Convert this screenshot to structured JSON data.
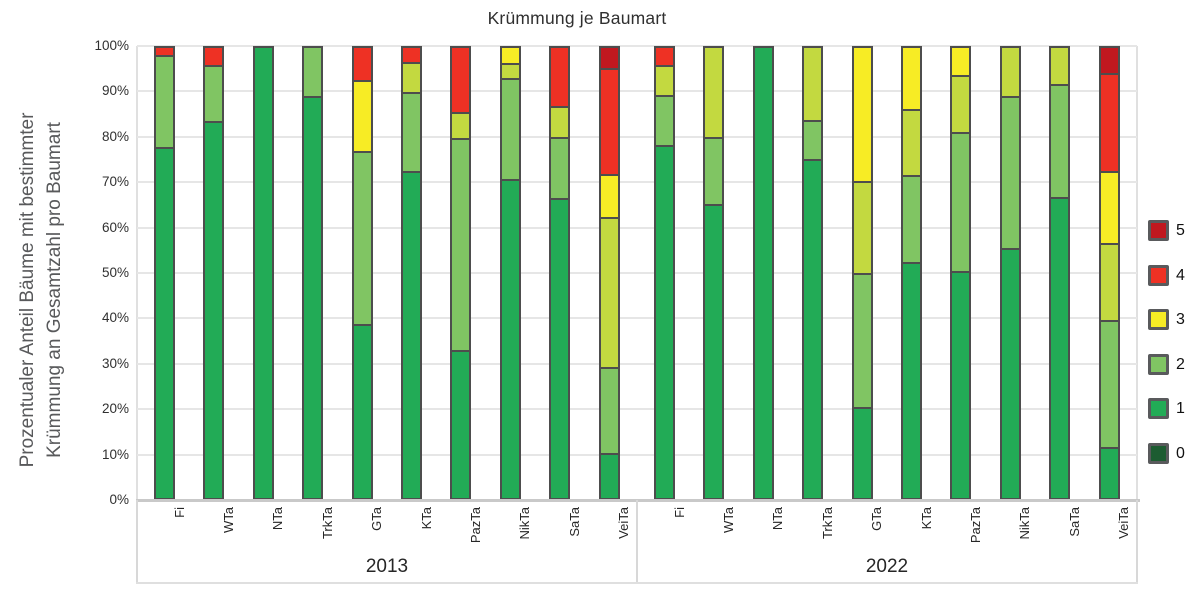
{
  "title": "Krümmung je Baumart",
  "y_axis": {
    "label_line1": "Prozentualer Anteil Bäume mit bestimmter",
    "label_line2": "Krümmung an Gesamtzahl pro Baumart",
    "ticks": [
      "100%",
      "90%",
      "80%",
      "70%",
      "60%",
      "50%",
      "40%",
      "30%",
      "20%",
      "10%",
      "0%"
    ]
  },
  "legend": {
    "items": [
      {
        "label": "5",
        "color": "#c0181f"
      },
      {
        "label": "4",
        "color": "#ee3124"
      },
      {
        "label": "3",
        "color": "#f7ec25"
      },
      {
        "label": "2",
        "color": "#80c563"
      },
      {
        "label": "1",
        "color": "#22ab56"
      },
      {
        "label": "0",
        "color": "#1d5c31"
      }
    ]
  },
  "chart_data": {
    "type": "stacked-bar",
    "unit": "percent-of-total-per-species",
    "title": "Krümmung je Baumart",
    "ylim": [
      0,
      100
    ],
    "grid": true,
    "legend_position": "right",
    "groups": [
      "2013",
      "2022"
    ],
    "categories": [
      "Fi",
      "WTa",
      "NTa",
      "TrkTa",
      "GTa",
      "KTa",
      "PazTa",
      "NikTa",
      "SaTa",
      "VeiTa"
    ],
    "level_colors": {
      "0": "#1d5c31",
      "1": "#22ab56",
      "2": "#80c563",
      "2b": "#c3d940",
      "3": "#f7ec25",
      "4": "#ee3124",
      "5": "#c0181f"
    },
    "bars": {
      "2013": [
        {
          "category": "Fi",
          "segments": [
            [
              "1",
              77.5
            ],
            [
              "2",
              20.5
            ],
            [
              "4",
              2.0
            ]
          ]
        },
        {
          "category": "WTa",
          "segments": [
            [
              "1",
              83.3
            ],
            [
              "2",
              12.5
            ],
            [
              "4",
              4.2
            ]
          ]
        },
        {
          "category": "NTa",
          "segments": [
            [
              "1",
              100.0
            ]
          ]
        },
        {
          "category": "TrkTa",
          "segments": [
            [
              "1",
              89.0
            ],
            [
              "2",
              11.0
            ]
          ]
        },
        {
          "category": "GTa",
          "segments": [
            [
              "1",
              38.3
            ],
            [
              "2",
              38.4
            ],
            [
              "3",
              15.8
            ],
            [
              "4",
              7.5
            ]
          ]
        },
        {
          "category": "KTa",
          "segments": [
            [
              "1",
              72.3
            ],
            [
              "2",
              17.4
            ],
            [
              "2b",
              6.8
            ],
            [
              "4",
              3.5
            ]
          ]
        },
        {
          "category": "PazTa",
          "segments": [
            [
              "1",
              32.4
            ],
            [
              "2",
              47.2
            ],
            [
              "2b",
              5.7
            ],
            [
              "4",
              14.7
            ]
          ]
        },
        {
          "category": "NikTa",
          "segments": [
            [
              "1",
              70.5
            ],
            [
              "2",
              22.4
            ],
            [
              "2b",
              3.4
            ],
            [
              "3",
              3.7
            ]
          ]
        },
        {
          "category": "SaTa",
          "segments": [
            [
              "1",
              66.3
            ],
            [
              "2",
              13.4
            ],
            [
              "2b",
              6.9
            ],
            [
              "4",
              13.4
            ]
          ]
        },
        {
          "category": "VeiTa",
          "segments": [
            [
              "1",
              9.5
            ],
            [
              "2",
              19.1
            ],
            [
              "2b",
              33.3
            ],
            [
              "3",
              9.7
            ],
            [
              "4",
              23.5
            ],
            [
              "5",
              4.9
            ]
          ]
        }
      ],
      "2022": [
        {
          "category": "Fi",
          "segments": [
            [
              "1",
              78.1
            ],
            [
              "2",
              11.1
            ],
            [
              "2b",
              6.6
            ],
            [
              "4",
              4.2
            ]
          ]
        },
        {
          "category": "WTa",
          "segments": [
            [
              "1",
              64.9
            ],
            [
              "2",
              14.9
            ],
            [
              "2b",
              20.2
            ]
          ]
        },
        {
          "category": "NTa",
          "segments": [
            [
              "1",
              100.0
            ]
          ]
        },
        {
          "category": "TrkTa",
          "segments": [
            [
              "1",
              75.0
            ],
            [
              "2",
              8.5
            ],
            [
              "2b",
              16.5
            ]
          ]
        },
        {
          "category": "GTa",
          "segments": [
            [
              "1",
              19.8
            ],
            [
              "2",
              29.8
            ],
            [
              "2b",
              20.3
            ],
            [
              "3",
              30.1
            ]
          ]
        },
        {
          "category": "KTa",
          "segments": [
            [
              "1",
              52.0
            ],
            [
              "2",
              19.4
            ],
            [
              "2b",
              14.5
            ],
            [
              "3",
              14.1
            ]
          ]
        },
        {
          "category": "PazTa",
          "segments": [
            [
              "1",
              50.0
            ],
            [
              "2",
              30.8
            ],
            [
              "2b",
              12.7
            ],
            [
              "3",
              6.5
            ]
          ]
        },
        {
          "category": "NikTa",
          "segments": [
            [
              "1",
              55.1
            ],
            [
              "2",
              33.7
            ],
            [
              "2b",
              11.2
            ]
          ]
        },
        {
          "category": "SaTa",
          "segments": [
            [
              "1",
              66.4
            ],
            [
              "2",
              25.2
            ],
            [
              "2b",
              8.4
            ]
          ]
        },
        {
          "category": "VeiTa",
          "segments": [
            [
              "1",
              10.8
            ],
            [
              "2",
              28.3
            ],
            [
              "2b",
              17.1
            ],
            [
              "3",
              16.1
            ],
            [
              "4",
              21.7
            ],
            [
              "5",
              6.0
            ]
          ]
        }
      ]
    }
  }
}
